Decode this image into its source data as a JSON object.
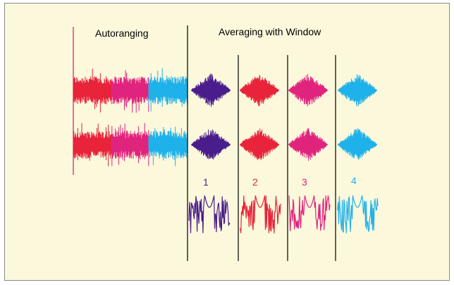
{
  "labels": {
    "autoranging": "Autoranging",
    "averaging": "Averaging with Window"
  },
  "windows": [
    {
      "number": "1",
      "color": "#4a1d8c"
    },
    {
      "number": "2",
      "color": "#e8233a"
    },
    {
      "number": "3",
      "color": "#e0247e"
    },
    {
      "number": "4",
      "color": "#1fb2ea"
    }
  ],
  "autorange_segments": [
    {
      "color": "#e8233a"
    },
    {
      "color": "#e0247e"
    },
    {
      "color": "#1fb2ea"
    }
  ],
  "colors": {
    "background": "#fcf8dc",
    "autorange_marker": "#e0247e",
    "divider": "#000000"
  }
}
